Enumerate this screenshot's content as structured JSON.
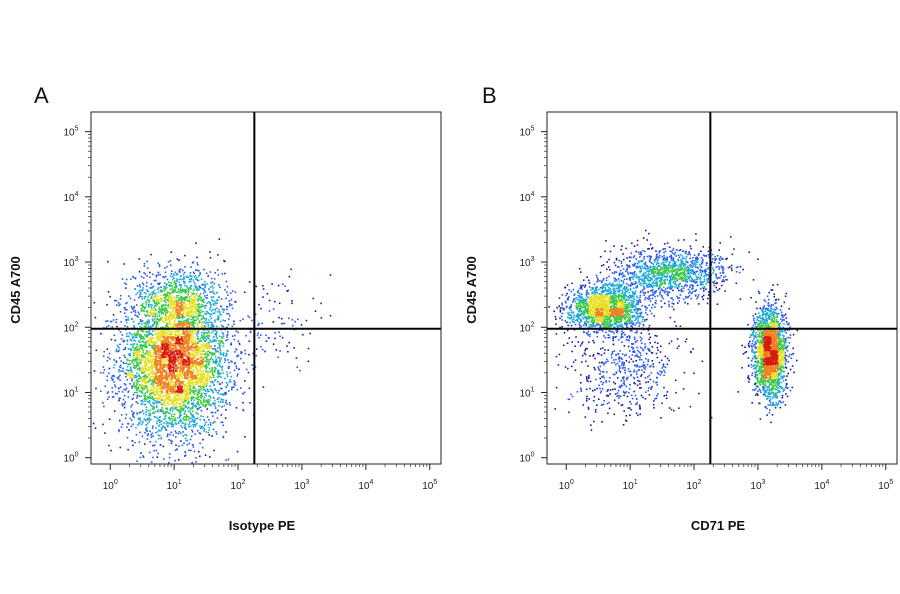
{
  "chart_data": [
    {
      "type": "scatter",
      "subtype": "flow-cytometry-density",
      "panel_label": "A",
      "xlabel": "Isotype PE",
      "ylabel": "CD45 A700",
      "xscale": "log",
      "yscale": "log",
      "xlim": [
        0.5,
        150000
      ],
      "ylim": [
        0.8,
        200000
      ],
      "xticks": [
        {
          "value": 1,
          "base": "10",
          "exp": "0"
        },
        {
          "value": 10,
          "base": "10",
          "exp": "1"
        },
        {
          "value": 100,
          "base": "10",
          "exp": "2"
        },
        {
          "value": 1000,
          "base": "10",
          "exp": "3"
        },
        {
          "value": 10000,
          "base": "10",
          "exp": "4"
        },
        {
          "value": 100000,
          "base": "10",
          "exp": "5"
        }
      ],
      "yticks": [
        {
          "value": 1,
          "base": "10",
          "exp": "0"
        },
        {
          "value": 10,
          "base": "10",
          "exp": "1"
        },
        {
          "value": 100,
          "base": "10",
          "exp": "2"
        },
        {
          "value": 1000,
          "base": "10",
          "exp": "3"
        },
        {
          "value": 10000,
          "base": "10",
          "exp": "4"
        },
        {
          "value": 100000,
          "base": "10",
          "exp": "5"
        }
      ],
      "quadrant_gate": {
        "x": 180,
        "y": 95
      },
      "populations": [
        {
          "center_x": 10,
          "center_y": 30,
          "spread_x": 0.42,
          "spread_y": 0.55,
          "weight": 0.88
        },
        {
          "center_x": 12,
          "center_y": 300,
          "spread_x": 0.35,
          "spread_y": 0.25,
          "weight": 0.1
        },
        {
          "center_x": 300,
          "center_y": 120,
          "spread_x": 0.35,
          "spread_y": 0.4,
          "weight": 0.02
        }
      ],
      "color_scale": [
        "#1a1aa8",
        "#2a5cf0",
        "#19a8d8",
        "#3cc84a",
        "#e6e020",
        "#f08020",
        "#d81a10"
      ],
      "grid": false
    },
    {
      "type": "scatter",
      "subtype": "flow-cytometry-density",
      "panel_label": "B",
      "xlabel": "CD71 PE",
      "ylabel": "CD45 A700",
      "xscale": "log",
      "yscale": "log",
      "xlim": [
        0.5,
        150000
      ],
      "ylim": [
        0.8,
        200000
      ],
      "xticks": [
        {
          "value": 1,
          "base": "10",
          "exp": "0"
        },
        {
          "value": 10,
          "base": "10",
          "exp": "1"
        },
        {
          "value": 100,
          "base": "10",
          "exp": "2"
        },
        {
          "value": 1000,
          "base": "10",
          "exp": "3"
        },
        {
          "value": 10000,
          "base": "10",
          "exp": "4"
        },
        {
          "value": 100000,
          "base": "10",
          "exp": "5"
        }
      ],
      "yticks": [
        {
          "value": 1,
          "base": "10",
          "exp": "0"
        },
        {
          "value": 10,
          "base": "10",
          "exp": "1"
        },
        {
          "value": 100,
          "base": "10",
          "exp": "2"
        },
        {
          "value": 1000,
          "base": "10",
          "exp": "3"
        },
        {
          "value": 10000,
          "base": "10",
          "exp": "4"
        },
        {
          "value": 100000,
          "base": "10",
          "exp": "5"
        }
      ],
      "quadrant_gate": {
        "x": 180,
        "y": 95
      },
      "populations": [
        {
          "center_x": 4,
          "center_y": 200,
          "spread_x": 0.3,
          "spread_y": 0.18,
          "weight": 0.3
        },
        {
          "center_x": 40,
          "center_y": 700,
          "spread_x": 0.45,
          "spread_y": 0.2,
          "weight": 0.22
        },
        {
          "center_x": 8,
          "center_y": 25,
          "spread_x": 0.45,
          "spread_y": 0.4,
          "weight": 0.1
        },
        {
          "center_x": 1500,
          "center_y": 40,
          "spread_x": 0.13,
          "spread_y": 0.35,
          "weight": 0.38
        }
      ],
      "color_scale": [
        "#1a1aa8",
        "#2a5cf0",
        "#19a8d8",
        "#3cc84a",
        "#e6e020",
        "#f08020",
        "#d81a10"
      ],
      "grid": false
    }
  ]
}
